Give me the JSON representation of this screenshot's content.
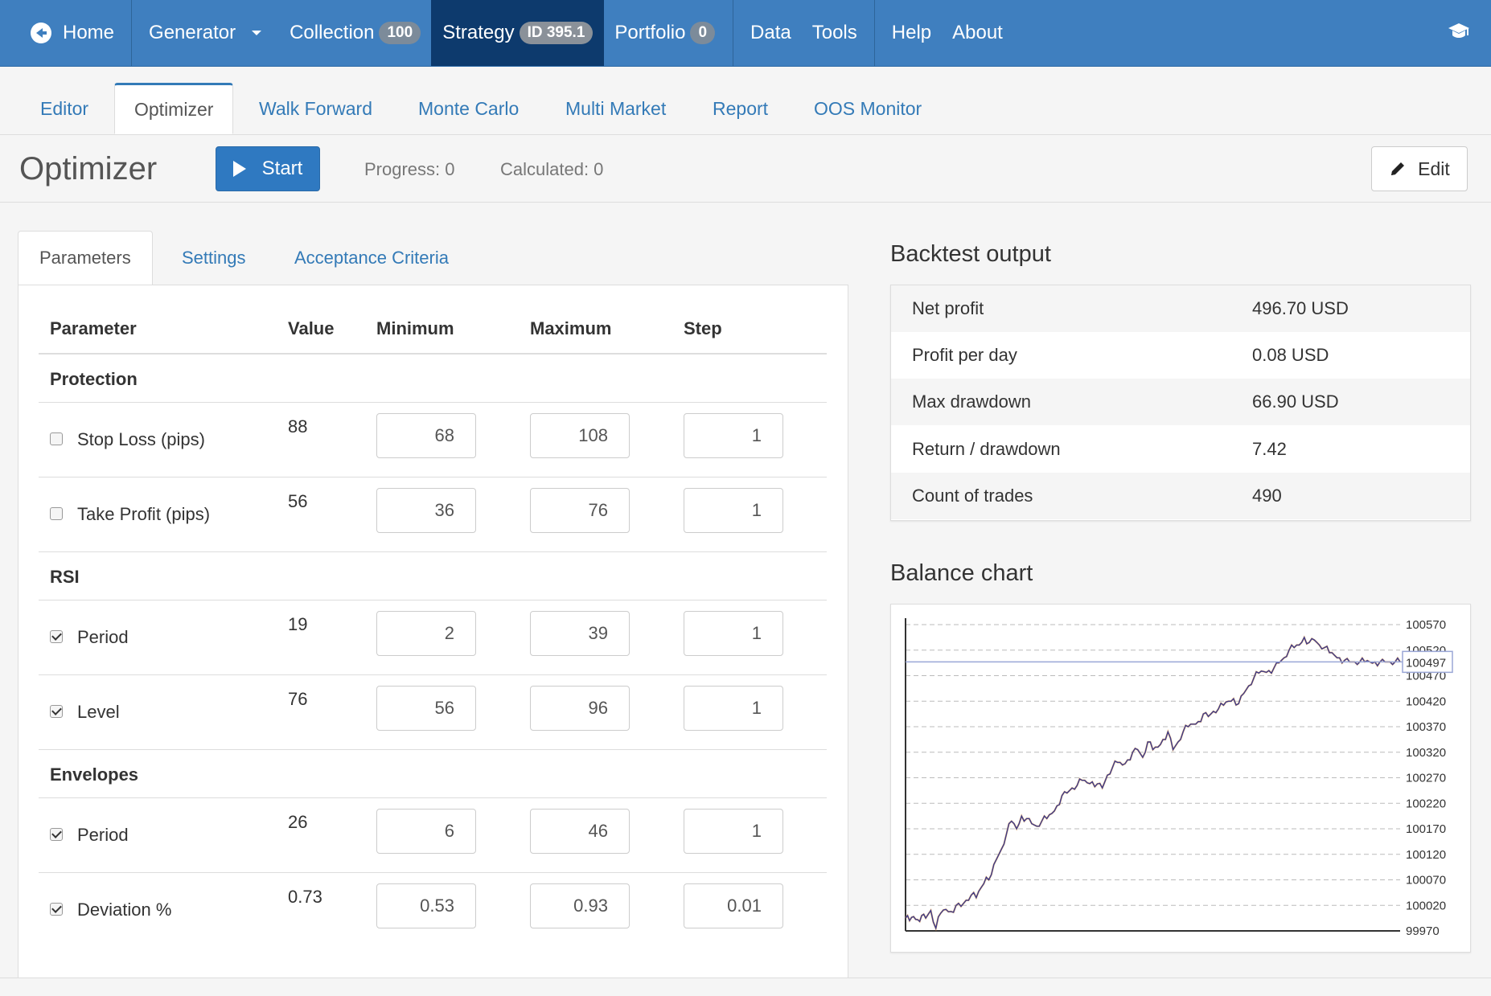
{
  "nav": {
    "home": "Home",
    "generator": "Generator",
    "collection": "Collection",
    "collection_count": "100",
    "strategy": "Strategy",
    "strategy_id": "ID 395.1",
    "portfolio": "Portfolio",
    "portfolio_count": "0",
    "data": "Data",
    "tools": "Tools",
    "help": "Help",
    "about": "About"
  },
  "tabs": [
    "Editor",
    "Optimizer",
    "Walk Forward",
    "Monte Carlo",
    "Multi Market",
    "Report",
    "OOS Monitor"
  ],
  "toolbar": {
    "title": "Optimizer",
    "start": "Start",
    "progress": "Progress: 0",
    "calculated": "Calculated: 0",
    "edit": "Edit"
  },
  "left_tabs": [
    "Parameters",
    "Settings",
    "Acceptance Criteria"
  ],
  "params_table": {
    "headers": [
      "Parameter",
      "Value",
      "Minimum",
      "Maximum",
      "Step"
    ],
    "groups": [
      {
        "name": "Protection",
        "rows": [
          {
            "checked": false,
            "label": "Stop Loss (pips)",
            "value": "88",
            "min": "68",
            "max": "108",
            "step": "1"
          },
          {
            "checked": false,
            "label": "Take Profit (pips)",
            "value": "56",
            "min": "36",
            "max": "76",
            "step": "1"
          }
        ]
      },
      {
        "name": "RSI",
        "rows": [
          {
            "checked": true,
            "label": "Period",
            "value": "19",
            "min": "2",
            "max": "39",
            "step": "1"
          },
          {
            "checked": true,
            "label": "Level",
            "value": "76",
            "min": "56",
            "max": "96",
            "step": "1"
          }
        ]
      },
      {
        "name": "Envelopes",
        "rows": [
          {
            "checked": true,
            "label": "Period",
            "value": "26",
            "min": "6",
            "max": "46",
            "step": "1"
          },
          {
            "checked": true,
            "label": "Deviation %",
            "value": "0.73",
            "min": "0.53",
            "max": "0.93",
            "step": "0.01"
          }
        ]
      }
    ]
  },
  "backtest": {
    "title": "Backtest output",
    "rows": [
      {
        "label": "Net profit",
        "value": "496.70 USD"
      },
      {
        "label": "Profit per day",
        "value": "0.08 USD"
      },
      {
        "label": "Max drawdown",
        "value": "66.90 USD"
      },
      {
        "label": "Return / drawdown",
        "value": "7.42"
      },
      {
        "label": "Count of trades",
        "value": "490"
      }
    ]
  },
  "balance_chart_title": "Balance chart",
  "chart_data": {
    "type": "line",
    "y_ticks": [
      100570,
      100520,
      100470,
      100420,
      100370,
      100320,
      100270,
      100220,
      100170,
      100120,
      100070,
      100020,
      99970
    ],
    "ylim": [
      99970,
      100570
    ],
    "current_value": "100497",
    "grid": true,
    "series": [
      {
        "x": [
          0,
          4,
          8,
          12,
          16,
          20,
          25,
          30,
          35,
          40,
          45,
          50,
          55,
          60,
          65,
          70,
          75,
          80,
          85,
          90,
          95,
          100,
          105,
          110,
          115,
          120,
          125,
          130,
          135,
          140,
          145,
          150,
          155,
          160,
          165,
          170,
          175,
          180,
          185,
          190,
          195,
          200,
          205,
          210,
          215,
          220,
          225,
          230,
          235,
          240,
          245,
          250,
          255,
          260,
          265,
          270,
          275,
          280,
          285,
          290,
          295,
          300,
          305,
          310,
          315,
          320,
          325,
          330,
          335,
          340,
          345,
          350,
          355,
          360,
          365,
          370,
          375,
          380,
          385,
          390,
          395,
          400,
          405,
          410,
          415,
          420,
          425,
          430,
          435,
          440,
          445,
          450,
          455,
          460,
          465,
          470,
          475,
          480,
          485,
          490
        ],
        "y": [
          99995,
          99990,
          99998,
          99992,
          100000,
          99995,
          100010,
          99975,
          100005,
          100012,
          100008,
          100020,
          100018,
          100030,
          100040,
          100035,
          100055,
          100075,
          100080,
          100110,
          100130,
          100160,
          100185,
          100170,
          100195,
          100190,
          100180,
          100175,
          100185,
          100190,
          100200,
          100215,
          100235,
          100240,
          100250,
          100255,
          100265,
          100260,
          100262,
          100258,
          100250,
          100275,
          100290,
          100300,
          100295,
          100305,
          100320,
          100325,
          100310,
          100340,
          100325,
          100330,
          100345,
          100360,
          100325,
          100340,
          100360,
          100370,
          100375,
          100380,
          100395,
          100390,
          100400,
          100405,
          100412,
          100420,
          100425,
          100415,
          100435,
          100450,
          100465,
          100475,
          100478,
          100480,
          100485,
          100495,
          100505,
          100520,
          100525,
          100530,
          100545,
          100535,
          100540,
          100530,
          100525,
          100515,
          100510,
          100505,
          100500,
          100497,
          100497,
          100497,
          100497,
          100497,
          100497,
          100497,
          100497,
          100497,
          100497,
          100497
        ]
      }
    ]
  }
}
